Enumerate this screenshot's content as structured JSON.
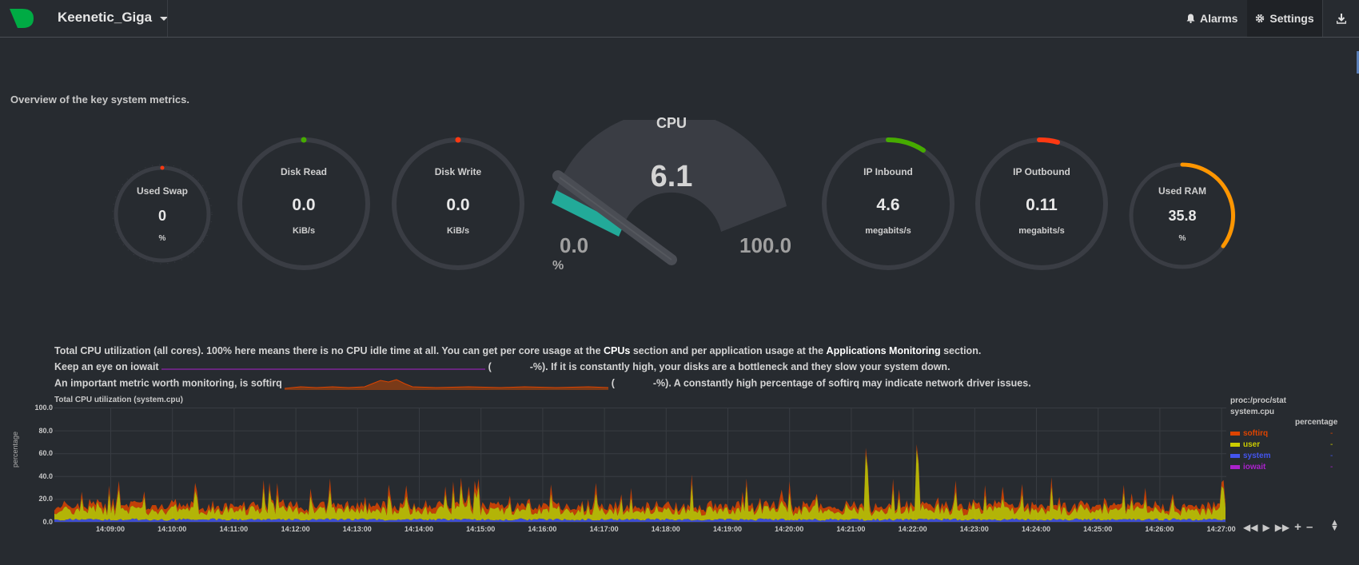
{
  "header": {
    "hostname": "Keenetic_Giga",
    "alarms_label": "Alarms",
    "settings_label": "Settings",
    "brand_color": "#00ab44",
    "icons": {
      "logo": "netdata-logo",
      "alarms": "bell-icon",
      "settings": "gear-icon",
      "download": "download-icon"
    }
  },
  "subtitle": "Overview of the key system metrics.",
  "gauges": [
    {
      "id": "swap",
      "title": "Used Swap",
      "value": "0",
      "unit": "%",
      "level": 0.0,
      "color": "#fe3912"
    },
    {
      "id": "diskread",
      "title": "Disk Read",
      "value": "0.0",
      "unit": "KiB/s",
      "level": 0.0,
      "color": "#46ab00"
    },
    {
      "id": "diskwrite",
      "title": "Disk Write",
      "value": "0.0",
      "unit": "KiB/s",
      "level": 0.0,
      "color": "#fe3912"
    },
    {
      "id": "ipin",
      "title": "IP Inbound",
      "value": "4.6",
      "unit": "megabits/s",
      "level": 0.11,
      "color": "#46ab00"
    },
    {
      "id": "ipout",
      "title": "IP Outbound",
      "value": "0.11",
      "unit": "megabits/s",
      "level": 0.05,
      "color": "#fe3912"
    },
    {
      "id": "ram",
      "title": "Used RAM",
      "value": "35.8",
      "unit": "%",
      "level": 0.358,
      "color": "#ff9600"
    }
  ],
  "cpu_gauge": {
    "title": "CPU",
    "value": "6.1",
    "min": "0.0",
    "max": "100.0",
    "unit": "%",
    "level": 0.061,
    "fill_color": "#22aa99"
  },
  "info": {
    "line1_a": "Total CPU utilization (all cores). 100% here means there is no CPU idle time at all. You can get per core usage at the ",
    "line1_cpus": "CPUs",
    "line1_b": " section and per application usage at the ",
    "line1_apps": "Applications Monitoring",
    "line1_c": " section.",
    "line2_a": "Keep an eye on iowait",
    "line2_open": "(",
    "line2_b": "-%). If it is constantly high, your disks are a bottleneck and they slow your system down.",
    "line3_a": "An important metric worth monitoring, is softirq",
    "line3_open": "(",
    "line3_b": "-%). A constantly high percentage of softirq may indicate network driver issues."
  },
  "chart": {
    "title": "Total CPU utilization (system.cpu)",
    "context": "proc:/proc/stat",
    "id": "system.cpu",
    "units": "percentage",
    "ylabel": "percentage",
    "yticks": [
      "100.0",
      "80.0",
      "60.0",
      "40.0",
      "20.0",
      "0.0"
    ],
    "xticks": [
      "14:09:00",
      "14:10:00",
      "14:11:00",
      "14:12:00",
      "14:13:00",
      "14:14:00",
      "14:15:00",
      "14:16:00",
      "14:17:00",
      "14:18:00",
      "14:19:00",
      "14:20:00",
      "14:21:00",
      "14:22:00",
      "14:23:00",
      "14:24:00",
      "14:25:00",
      "14:26:00",
      "14:27:00"
    ],
    "legend": [
      {
        "name": "softirq",
        "color": "#dd4400",
        "value": "-"
      },
      {
        "name": "user",
        "color": "#cccc00",
        "value": "-"
      },
      {
        "name": "system",
        "color": "#4455ee",
        "value": "-"
      },
      {
        "name": "iowait",
        "color": "#aa22cc",
        "value": "-"
      }
    ]
  },
  "chart_data": {
    "type": "area",
    "title": "Total CPU utilization (system.cpu)",
    "xlabel": "",
    "ylabel": "percentage",
    "ylim": [
      0,
      100
    ],
    "x_range": [
      "14:08:07",
      "14:27:20"
    ],
    "series": [
      {
        "name": "softirq",
        "approx_values": "mostly 2-6, peaks to 12"
      },
      {
        "name": "user",
        "approx_values": "mostly 5-15, spikes to 60 near 14:21:40 and 14:22:30"
      },
      {
        "name": "system",
        "approx_values": "mostly 1-3"
      },
      {
        "name": "iowait",
        "approx_values": "0"
      }
    ]
  }
}
